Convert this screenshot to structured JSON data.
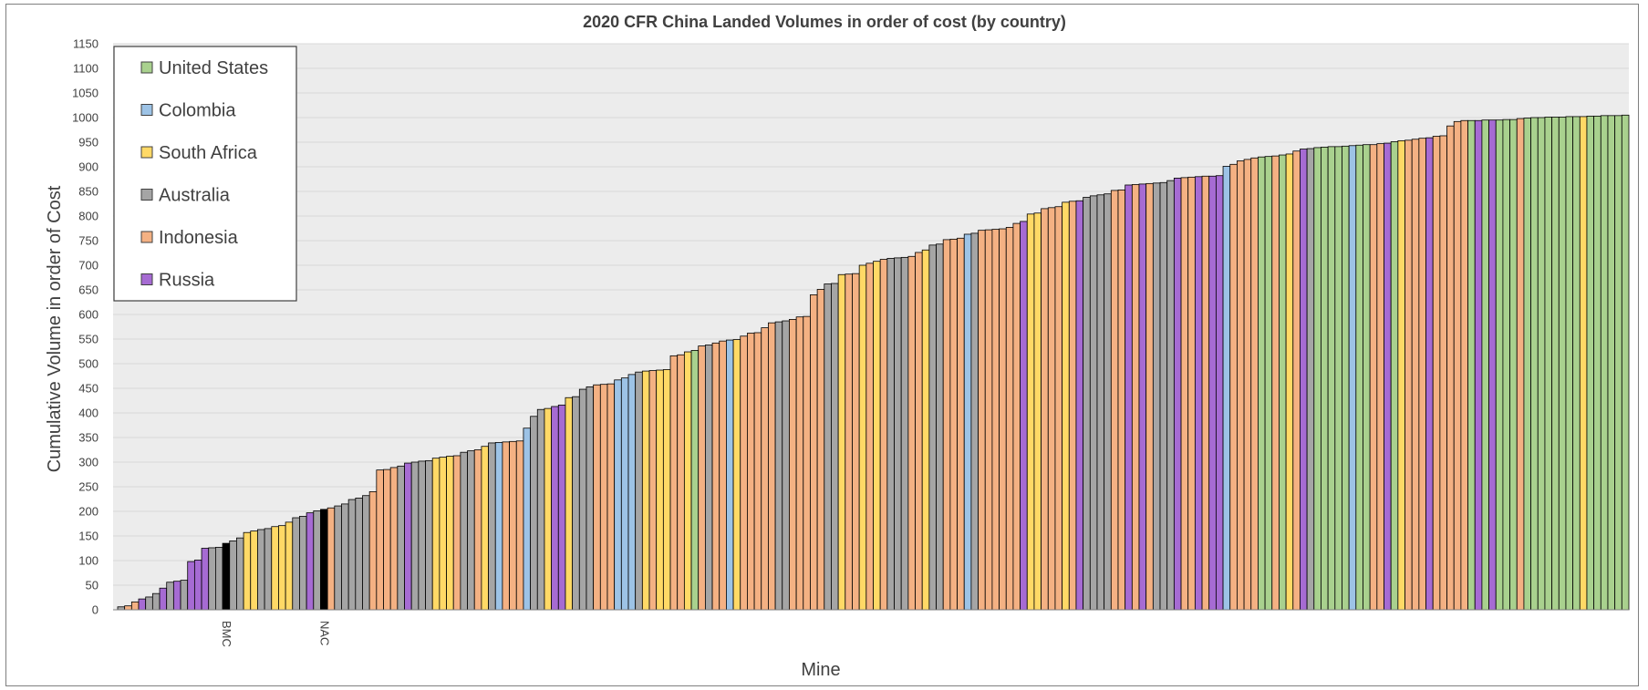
{
  "chart_data": {
    "type": "bar",
    "title": "2020 CFR China Landed Volumes in order of cost (by country)",
    "xlabel": "Mine",
    "ylabel": "Cumulative Volume in order of Cost",
    "ylim": [
      0,
      1150
    ],
    "ytick_step": 50,
    "grid": true,
    "legend_position": "top-left",
    "legend": [
      {
        "name": "United States",
        "color": "#a9d18e"
      },
      {
        "name": "Colombia",
        "color": "#9dc3e6"
      },
      {
        "name": "South Africa",
        "color": "#ffd966"
      },
      {
        "name": "Australia",
        "color": "#a5a5a5"
      },
      {
        "name": "Indonesia",
        "color": "#f4b183"
      },
      {
        "name": "Russia",
        "color": "#a66bd3"
      }
    ],
    "highlight_color": "#000000",
    "category_labels": [
      {
        "index": 15,
        "label": "BMC"
      },
      {
        "index": 29,
        "label": "NAC"
      }
    ],
    "country_codes": {
      "U": "United States",
      "C": "Colombia",
      "S": "South Africa",
      "A": "Australia",
      "I": "Indonesia",
      "R": "Russia",
      "K": "Highlighted"
    },
    "mines": [
      {
        "c": "A",
        "v": 6
      },
      {
        "c": "I",
        "v": 8
      },
      {
        "c": "I",
        "v": 16
      },
      {
        "c": "R",
        "v": 22
      },
      {
        "c": "A",
        "v": 26
      },
      {
        "c": "A",
        "v": 33
      },
      {
        "c": "R",
        "v": 44
      },
      {
        "c": "A",
        "v": 56
      },
      {
        "c": "R",
        "v": 58
      },
      {
        "c": "A",
        "v": 60
      },
      {
        "c": "R",
        "v": 98
      },
      {
        "c": "R",
        "v": 101
      },
      {
        "c": "R",
        "v": 125
      },
      {
        "c": "A",
        "v": 126
      },
      {
        "c": "A",
        "v": 127
      },
      {
        "c": "K",
        "v": 135
      },
      {
        "c": "A",
        "v": 140
      },
      {
        "c": "A",
        "v": 146
      },
      {
        "c": "S",
        "v": 157
      },
      {
        "c": "S",
        "v": 160
      },
      {
        "c": "A",
        "v": 163
      },
      {
        "c": "A",
        "v": 165
      },
      {
        "c": "S",
        "v": 169
      },
      {
        "c": "S",
        "v": 171
      },
      {
        "c": "S",
        "v": 178
      },
      {
        "c": "A",
        "v": 187
      },
      {
        "c": "A",
        "v": 190
      },
      {
        "c": "R",
        "v": 197
      },
      {
        "c": "A",
        "v": 201
      },
      {
        "c": "K",
        "v": 204
      },
      {
        "c": "I",
        "v": 207
      },
      {
        "c": "A",
        "v": 211
      },
      {
        "c": "A",
        "v": 215
      },
      {
        "c": "A",
        "v": 224
      },
      {
        "c": "A",
        "v": 227
      },
      {
        "c": "A",
        "v": 232
      },
      {
        "c": "I",
        "v": 240
      },
      {
        "c": "I",
        "v": 284
      },
      {
        "c": "I",
        "v": 285
      },
      {
        "c": "I",
        "v": 289
      },
      {
        "c": "A",
        "v": 292
      },
      {
        "c": "R",
        "v": 298
      },
      {
        "c": "A",
        "v": 300
      },
      {
        "c": "A",
        "v": 302
      },
      {
        "c": "A",
        "v": 303
      },
      {
        "c": "S",
        "v": 308
      },
      {
        "c": "S",
        "v": 310
      },
      {
        "c": "S",
        "v": 312
      },
      {
        "c": "I",
        "v": 313
      },
      {
        "c": "A",
        "v": 320
      },
      {
        "c": "A",
        "v": 323
      },
      {
        "c": "I",
        "v": 325
      },
      {
        "c": "S",
        "v": 332
      },
      {
        "c": "A",
        "v": 339
      },
      {
        "c": "C",
        "v": 340
      },
      {
        "c": "I",
        "v": 341
      },
      {
        "c": "I",
        "v": 342
      },
      {
        "c": "I",
        "v": 343
      },
      {
        "c": "C",
        "v": 369
      },
      {
        "c": "A",
        "v": 393
      },
      {
        "c": "A",
        "v": 407
      },
      {
        "c": "S",
        "v": 409
      },
      {
        "c": "R",
        "v": 413
      },
      {
        "c": "R",
        "v": 416
      },
      {
        "c": "S",
        "v": 431
      },
      {
        "c": "A",
        "v": 433
      },
      {
        "c": "A",
        "v": 448
      },
      {
        "c": "A",
        "v": 453
      },
      {
        "c": "I",
        "v": 457
      },
      {
        "c": "I",
        "v": 458
      },
      {
        "c": "I",
        "v": 459
      },
      {
        "c": "C",
        "v": 467
      },
      {
        "c": "C",
        "v": 471
      },
      {
        "c": "C",
        "v": 478
      },
      {
        "c": "A",
        "v": 483
      },
      {
        "c": "S",
        "v": 485
      },
      {
        "c": "I",
        "v": 486
      },
      {
        "c": "S",
        "v": 487
      },
      {
        "c": "S",
        "v": 488
      },
      {
        "c": "I",
        "v": 516
      },
      {
        "c": "I",
        "v": 518
      },
      {
        "c": "S",
        "v": 524
      },
      {
        "c": "U",
        "v": 527
      },
      {
        "c": "I",
        "v": 536
      },
      {
        "c": "A",
        "v": 538
      },
      {
        "c": "I",
        "v": 542
      },
      {
        "c": "I",
        "v": 546
      },
      {
        "c": "C",
        "v": 548
      },
      {
        "c": "S",
        "v": 549
      },
      {
        "c": "I",
        "v": 556
      },
      {
        "c": "I",
        "v": 562
      },
      {
        "c": "I",
        "v": 563
      },
      {
        "c": "I",
        "v": 573
      },
      {
        "c": "I",
        "v": 583
      },
      {
        "c": "A",
        "v": 585
      },
      {
        "c": "A",
        "v": 587
      },
      {
        "c": "I",
        "v": 590
      },
      {
        "c": "I",
        "v": 595
      },
      {
        "c": "I",
        "v": 596
      },
      {
        "c": "I",
        "v": 640
      },
      {
        "c": "I",
        "v": 651
      },
      {
        "c": "A",
        "v": 662
      },
      {
        "c": "A",
        "v": 663
      },
      {
        "c": "S",
        "v": 681
      },
      {
        "c": "I",
        "v": 682
      },
      {
        "c": "I",
        "v": 683
      },
      {
        "c": "S",
        "v": 700
      },
      {
        "c": "I",
        "v": 704
      },
      {
        "c": "S",
        "v": 708
      },
      {
        "c": "I",
        "v": 712
      },
      {
        "c": "A",
        "v": 714
      },
      {
        "c": "A",
        "v": 715
      },
      {
        "c": "A",
        "v": 716
      },
      {
        "c": "I",
        "v": 718
      },
      {
        "c": "I",
        "v": 726
      },
      {
        "c": "S",
        "v": 731
      },
      {
        "c": "A",
        "v": 741
      },
      {
        "c": "A",
        "v": 743
      },
      {
        "c": "I",
        "v": 752
      },
      {
        "c": "I",
        "v": 753
      },
      {
        "c": "I",
        "v": 755
      },
      {
        "c": "C",
        "v": 763
      },
      {
        "c": "A",
        "v": 765
      },
      {
        "c": "I",
        "v": 771
      },
      {
        "c": "I",
        "v": 772
      },
      {
        "c": "I",
        "v": 773
      },
      {
        "c": "I",
        "v": 774
      },
      {
        "c": "I",
        "v": 777
      },
      {
        "c": "I",
        "v": 785
      },
      {
        "c": "R",
        "v": 789
      },
      {
        "c": "S",
        "v": 804
      },
      {
        "c": "S",
        "v": 806
      },
      {
        "c": "I",
        "v": 815
      },
      {
        "c": "I",
        "v": 817
      },
      {
        "c": "I",
        "v": 819
      },
      {
        "c": "S",
        "v": 828
      },
      {
        "c": "I",
        "v": 830
      },
      {
        "c": "R",
        "v": 831
      },
      {
        "c": "A",
        "v": 838
      },
      {
        "c": "A",
        "v": 841
      },
      {
        "c": "A",
        "v": 843
      },
      {
        "c": "A",
        "v": 845
      },
      {
        "c": "I",
        "v": 852
      },
      {
        "c": "I",
        "v": 853
      },
      {
        "c": "R",
        "v": 863
      },
      {
        "c": "I",
        "v": 864
      },
      {
        "c": "R",
        "v": 865
      },
      {
        "c": "I",
        "v": 866
      },
      {
        "c": "A",
        "v": 867
      },
      {
        "c": "A",
        "v": 868
      },
      {
        "c": "A",
        "v": 872
      },
      {
        "c": "R",
        "v": 877
      },
      {
        "c": "I",
        "v": 878
      },
      {
        "c": "I",
        "v": 879
      },
      {
        "c": "R",
        "v": 880
      },
      {
        "c": "I",
        "v": 881
      },
      {
        "c": "R",
        "v": 881
      },
      {
        "c": "R",
        "v": 882
      },
      {
        "c": "C",
        "v": 901
      },
      {
        "c": "I",
        "v": 905
      },
      {
        "c": "I",
        "v": 912
      },
      {
        "c": "I",
        "v": 915
      },
      {
        "c": "I",
        "v": 918
      },
      {
        "c": "U",
        "v": 920
      },
      {
        "c": "U",
        "v": 921
      },
      {
        "c": "I",
        "v": 922
      },
      {
        "c": "U",
        "v": 924
      },
      {
        "c": "S",
        "v": 926
      },
      {
        "c": "I",
        "v": 932
      },
      {
        "c": "R",
        "v": 936
      },
      {
        "c": "A",
        "v": 937
      },
      {
        "c": "U",
        "v": 939
      },
      {
        "c": "U",
        "v": 940
      },
      {
        "c": "U",
        "v": 941
      },
      {
        "c": "U",
        "v": 941
      },
      {
        "c": "U",
        "v": 942
      },
      {
        "c": "C",
        "v": 943
      },
      {
        "c": "U",
        "v": 944
      },
      {
        "c": "U",
        "v": 945
      },
      {
        "c": "I",
        "v": 945
      },
      {
        "c": "I",
        "v": 947
      },
      {
        "c": "R",
        "v": 948
      },
      {
        "c": "U",
        "v": 951
      },
      {
        "c": "S",
        "v": 953
      },
      {
        "c": "I",
        "v": 954
      },
      {
        "c": "I",
        "v": 956
      },
      {
        "c": "I",
        "v": 958
      },
      {
        "c": "R",
        "v": 959
      },
      {
        "c": "I",
        "v": 962
      },
      {
        "c": "I",
        "v": 963
      },
      {
        "c": "I",
        "v": 983
      },
      {
        "c": "I",
        "v": 992
      },
      {
        "c": "I",
        "v": 994
      },
      {
        "c": "U",
        "v": 994
      },
      {
        "c": "R",
        "v": 994
      },
      {
        "c": "U",
        "v": 995
      },
      {
        "c": "R",
        "v": 995
      },
      {
        "c": "U",
        "v": 995
      },
      {
        "c": "U",
        "v": 996
      },
      {
        "c": "U",
        "v": 996
      },
      {
        "c": "I",
        "v": 998
      },
      {
        "c": "U",
        "v": 999
      },
      {
        "c": "U",
        "v": 1000
      },
      {
        "c": "U",
        "v": 1000
      },
      {
        "c": "U",
        "v": 1001
      },
      {
        "c": "U",
        "v": 1001
      },
      {
        "c": "U",
        "v": 1001
      },
      {
        "c": "U",
        "v": 1002
      },
      {
        "c": "U",
        "v": 1002
      },
      {
        "c": "S",
        "v": 1002
      },
      {
        "c": "U",
        "v": 1003
      },
      {
        "c": "U",
        "v": 1003
      },
      {
        "c": "U",
        "v": 1004
      },
      {
        "c": "U",
        "v": 1004
      },
      {
        "c": "U",
        "v": 1004
      },
      {
        "c": "U",
        "v": 1005
      }
    ]
  }
}
